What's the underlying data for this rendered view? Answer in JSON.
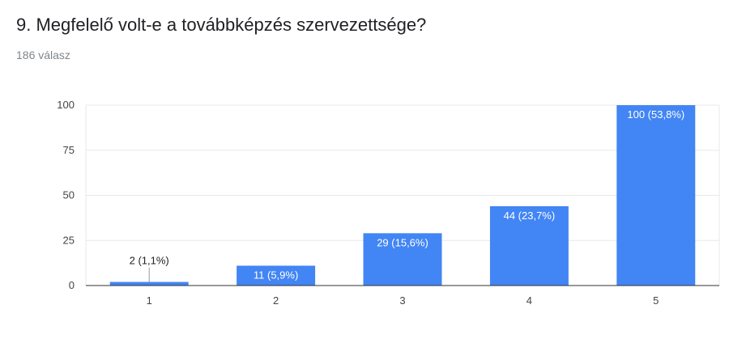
{
  "header": {
    "title": "9. Megfelelő volt-e a továbbképzés szervezettsége?",
    "subtitle": "186 válasz"
  },
  "colors": {
    "bar": "#4285f4",
    "grid": "#e8e8e8",
    "axis": "#333333"
  },
  "chart_data": {
    "type": "bar",
    "categories": [
      "1",
      "2",
      "3",
      "4",
      "5"
    ],
    "values": [
      2,
      11,
      29,
      44,
      100
    ],
    "data_labels": [
      "2 (1,1%)",
      "11 (5,9%)",
      "29 (15,6%)",
      "44 (23,7%)",
      "100 (53,8%)"
    ],
    "title": "9. Megfelelő volt-e a továbbképzés szervezettsége?",
    "subtitle": "186 válasz",
    "xlabel": "",
    "ylabel": "",
    "ylim": [
      0,
      100
    ],
    "yticks": [
      0,
      25,
      50,
      75,
      100
    ],
    "grid": true,
    "legend": "none"
  }
}
